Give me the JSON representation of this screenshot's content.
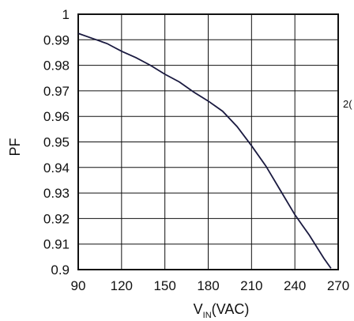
{
  "chart_data": {
    "type": "line",
    "title": "",
    "xlabel_main": "V",
    "xlabel_sub": "IN",
    "xlabel_unit": "(VAC)",
    "ylabel": "PF",
    "xlim": [
      90,
      270
    ],
    "ylim": [
      0.9,
      1
    ],
    "x_ticks": [
      "90",
      "120",
      "150",
      "180",
      "210",
      "240",
      "270"
    ],
    "y_ticks": [
      "1",
      "0.99",
      "0.98",
      "0.97",
      "0.96",
      "0.95",
      "0.94",
      "0.93",
      "0.92",
      "0.91",
      "0.9"
    ],
    "grid": true,
    "series": [
      {
        "x": [
          90,
          100,
          110,
          115,
          120,
          130,
          140,
          150,
          160,
          170,
          180,
          185,
          190,
          200,
          210,
          220,
          230,
          240,
          250,
          260,
          265
        ],
        "y": [
          0.9925,
          0.9905,
          0.9885,
          0.987,
          0.9855,
          0.983,
          0.98,
          0.9765,
          0.9735,
          0.9695,
          0.966,
          0.964,
          0.962,
          0.956,
          0.9485,
          0.9405,
          0.931,
          0.9215,
          0.9135,
          0.9045,
          0.9005
        ]
      }
    ]
  },
  "stray_label": "2("
}
